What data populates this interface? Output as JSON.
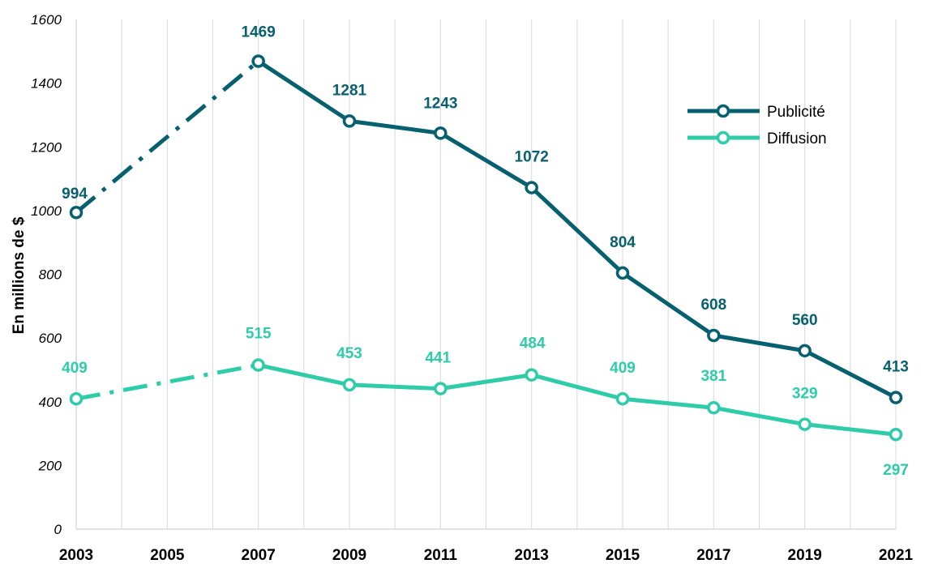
{
  "chart_data": {
    "type": "line",
    "title": "",
    "xlabel": "",
    "ylabel": "En millions de $",
    "x": [
      2003,
      2007,
      2009,
      2011,
      2013,
      2015,
      2017,
      2019,
      2021
    ],
    "xlim": [
      2003,
      2021
    ],
    "xticks": [
      "2003",
      "2005",
      "2007",
      "2009",
      "2011",
      "2013",
      "2015",
      "2017",
      "2019",
      "2021"
    ],
    "ylim": [
      0,
      1600
    ],
    "yticks": [
      "0",
      "200",
      "400",
      "600",
      "800",
      "1000",
      "1200",
      "1400",
      "1600"
    ],
    "grid": "vertical",
    "legend_position": "top-right",
    "series": [
      {
        "name": "Publicité",
        "color": "#07606F",
        "values": [
          994,
          1469,
          1281,
          1243,
          1072,
          804,
          608,
          560,
          413
        ],
        "labels": [
          "994",
          "1469",
          "1281",
          "1243",
          "1072",
          "804",
          "608",
          "560",
          "413"
        ],
        "dashed_first_segment": true
      },
      {
        "name": "Diffusion",
        "color": "#2ECCA9",
        "values": [
          409,
          515,
          453,
          441,
          484,
          409,
          381,
          329,
          297
        ],
        "labels": [
          "409",
          "515",
          "453",
          "441",
          "484",
          "409",
          "381",
          "329",
          "297"
        ],
        "dashed_first_segment": true
      }
    ]
  }
}
